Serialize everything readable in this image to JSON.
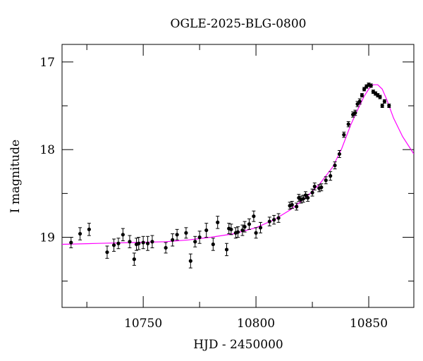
{
  "chart_data": {
    "type": "scatter",
    "title": "OGLE-2025-BLG-0800",
    "xlabel": "HJD - 2450000",
    "ylabel": "I magnitude",
    "xlim": [
      10714,
      10870
    ],
    "ylim": [
      19.8,
      16.8
    ],
    "y_inverted": true,
    "x_major_ticks": [
      10750,
      10800,
      10850
    ],
    "x_minor_ticks": [
      10725,
      10775,
      10825
    ],
    "y_major_ticks": [
      17,
      18,
      19
    ],
    "y_minor_ticks": [
      17.5,
      18.5,
      19.5
    ],
    "x_tick_labels": [
      "10750",
      "10800",
      "10850"
    ],
    "y_tick_labels": [
      "17",
      "18",
      "19"
    ],
    "colors": {
      "model": "#ff00ff",
      "points": "#000000"
    },
    "series": [
      {
        "name": "data",
        "x": [
          10718,
          10722,
          10726,
          10734,
          10737,
          10739,
          10741,
          10744,
          10746,
          10747,
          10748,
          10750,
          10752,
          10754,
          10760,
          10763,
          10765,
          10769,
          10771,
          10773,
          10775,
          10778,
          10781,
          10783,
          10787,
          10788,
          10789,
          10791,
          10792,
          10794,
          10795,
          10797,
          10799,
          10800,
          10802,
          10806,
          10808,
          10810,
          10815,
          10816,
          10818,
          10819,
          10820,
          10821,
          10822,
          10823,
          10825,
          10826,
          10828,
          10829,
          10831,
          10833,
          10835,
          10837,
          10839,
          10841,
          10843,
          10844,
          10845,
          10846,
          10847,
          10848,
          10849,
          10850,
          10851,
          10852,
          10853,
          10854,
          10855,
          10856,
          10857,
          10859
        ],
        "y": [
          19.06,
          18.96,
          18.91,
          19.17,
          19.09,
          19.07,
          18.97,
          19.05,
          19.25,
          19.08,
          19.07,
          19.06,
          19.07,
          19.05,
          19.12,
          19.03,
          18.97,
          18.95,
          19.27,
          19.05,
          19.0,
          18.92,
          19.08,
          18.83,
          19.14,
          18.9,
          18.91,
          18.95,
          18.94,
          18.92,
          18.88,
          18.85,
          18.76,
          18.95,
          18.89,
          18.82,
          18.8,
          18.78,
          18.64,
          18.63,
          18.65,
          18.55,
          18.57,
          18.56,
          18.52,
          18.55,
          18.49,
          18.42,
          18.44,
          18.43,
          18.35,
          18.3,
          18.18,
          18.05,
          17.83,
          17.71,
          17.6,
          17.58,
          17.48,
          17.45,
          17.38,
          17.31,
          17.28,
          17.26,
          17.27,
          17.34,
          17.36,
          17.38,
          17.4,
          17.5,
          17.45,
          17.5
        ],
        "err": [
          0.06,
          0.07,
          0.07,
          0.07,
          0.07,
          0.06,
          0.07,
          0.07,
          0.07,
          0.07,
          0.07,
          0.07,
          0.08,
          0.07,
          0.06,
          0.07,
          0.06,
          0.06,
          0.08,
          0.06,
          0.07,
          0.08,
          0.07,
          0.07,
          0.07,
          0.06,
          0.06,
          0.06,
          0.06,
          0.06,
          0.06,
          0.06,
          0.06,
          0.06,
          0.06,
          0.05,
          0.05,
          0.05,
          0.04,
          0.04,
          0.04,
          0.04,
          0.04,
          0.04,
          0.04,
          0.04,
          0.04,
          0.04,
          0.04,
          0.04,
          0.04,
          0.05,
          0.04,
          0.04,
          0.03,
          0.03,
          0.03,
          0.03,
          0.03,
          0.03,
          0.02,
          0.02,
          0.02,
          0.02,
          0.02,
          0.02,
          0.02,
          0.02,
          0.02,
          0.02,
          0.02,
          0.02
        ]
      },
      {
        "name": "model",
        "type": "line",
        "x": [
          10714,
          10730,
          10745,
          10760,
          10770,
          10780,
          10790,
          10800,
          10808,
          10815,
          10822,
          10828,
          10834,
          10838,
          10842,
          10845,
          10848,
          10850,
          10852,
          10854,
          10856,
          10858,
          10861,
          10865,
          10870
        ],
        "y": [
          19.08,
          19.07,
          19.06,
          19.05,
          19.03,
          19.0,
          18.96,
          18.89,
          18.8,
          18.69,
          18.55,
          18.4,
          18.2,
          17.99,
          17.72,
          17.55,
          17.39,
          17.31,
          17.26,
          17.26,
          17.31,
          17.43,
          17.64,
          17.85,
          18.05
        ]
      }
    ]
  }
}
